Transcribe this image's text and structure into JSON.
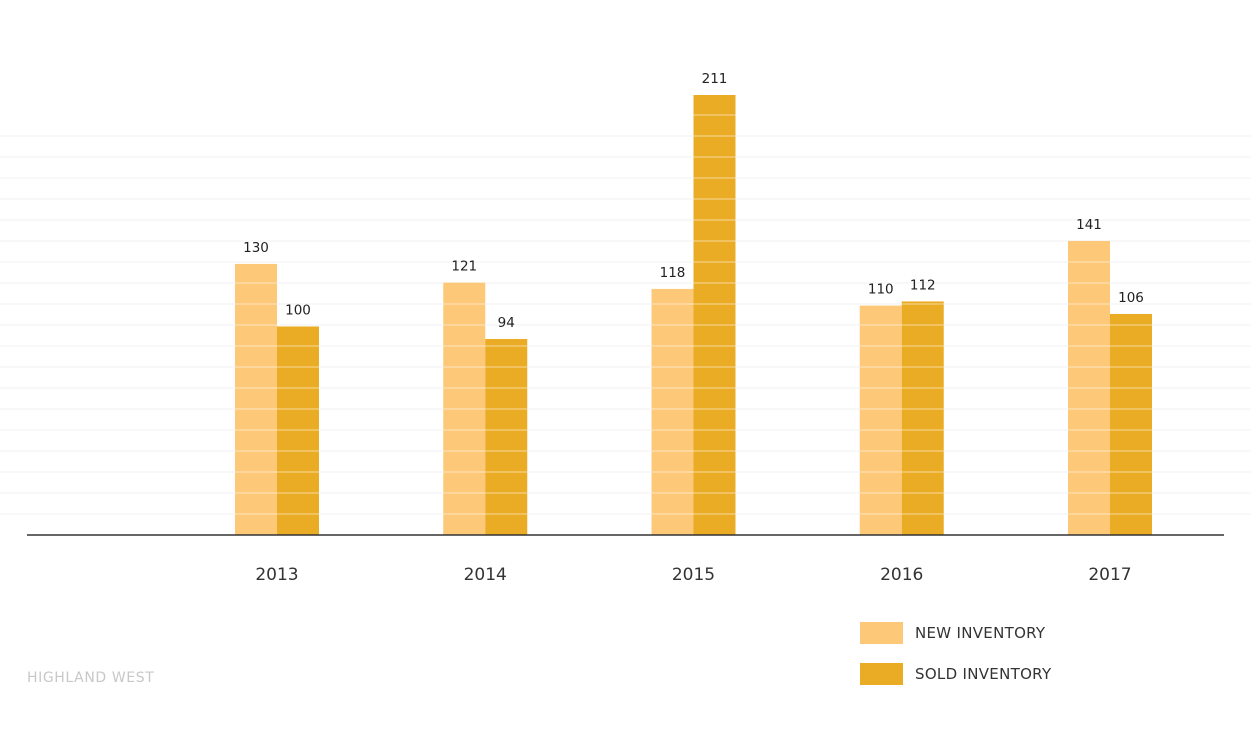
{
  "colors": {
    "new_inventory": "#fdc877",
    "sold_inventory": "#eaab25",
    "gridline": "#f0f0f0",
    "axis": "#333333",
    "footer_text": "#c8c8c8"
  },
  "footer": {
    "label": "HIGHLAND WEST"
  },
  "legend": {
    "items": [
      {
        "label": "NEW INVENTORY",
        "color": "#fdc877"
      },
      {
        "label": "SOLD INVENTORY",
        "color": "#eaab25"
      }
    ]
  },
  "chart_data": {
    "type": "bar",
    "title": "",
    "xlabel": "",
    "ylabel": "",
    "categories": [
      "2013",
      "2014",
      "2015",
      "2016",
      "2017"
    ],
    "series": [
      {
        "name": "NEW INVENTORY",
        "values": [
          130,
          121,
          118,
          110,
          141
        ]
      },
      {
        "name": "SOLD INVENTORY",
        "values": [
          100,
          94,
          211,
          112,
          106
        ]
      }
    ],
    "ylim": [
      0,
      211
    ],
    "grid": true,
    "legend_position": "bottom-right",
    "data_labels": true
  }
}
